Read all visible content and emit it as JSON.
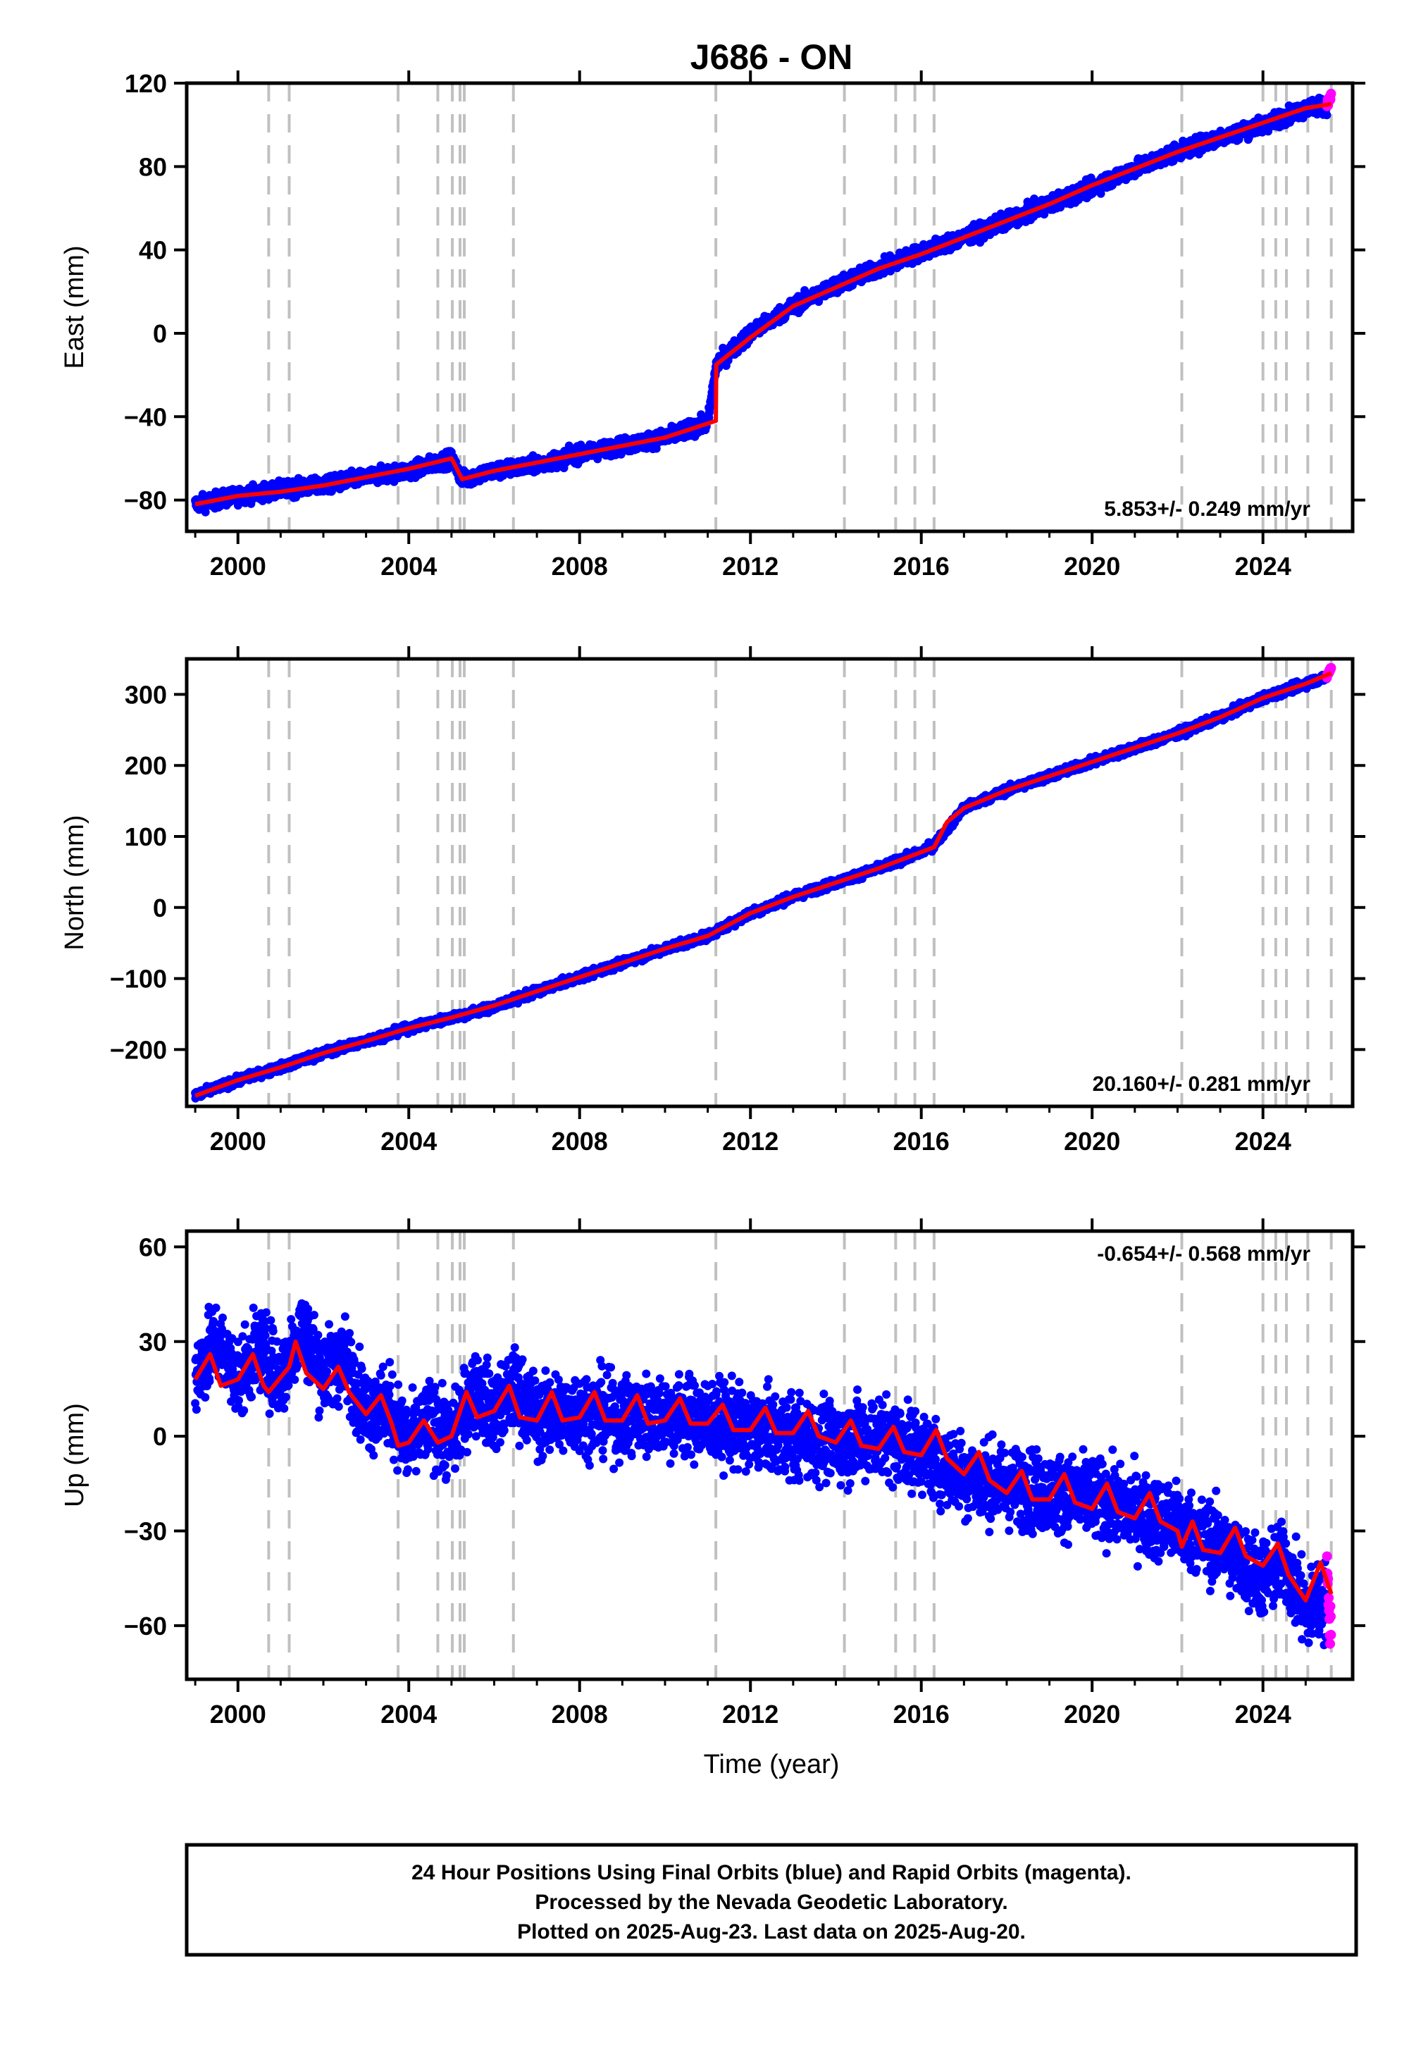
{
  "chart_data": [
    {
      "type": "scatter",
      "panel": "east",
      "title": "J686 - ON",
      "xlabel": "",
      "ylabel": "East (mm)",
      "xlim": [
        1998.8,
        2026.1
      ],
      "ylim": [
        -95,
        120
      ],
      "yticks": [
        -80,
        -40,
        0,
        40,
        80,
        120
      ],
      "xticks": [
        2000,
        2004,
        2008,
        2012,
        2016,
        2020,
        2024
      ],
      "grid": false,
      "rate_label": "5.853+/- 0.249 mm/yr",
      "offset_epochs": [
        2000.72,
        2001.2,
        2003.75,
        2004.68,
        2005.02,
        2005.2,
        2005.3,
        2006.45,
        2011.19,
        2014.2,
        2015.4,
        2015.85,
        2016.3,
        2022.1,
        2024.0,
        2024.3,
        2024.55,
        2025.05,
        2025.6
      ],
      "series": [
        {
          "name": "Final Orbits (blue)",
          "color": "#0000ff",
          "x": [
            1999.0,
            2000.0,
            2001.0,
            2002.0,
            2003.0,
            2004.0,
            2005.0,
            2005.25,
            2006.0,
            2007.0,
            2008.0,
            2009.0,
            2010.0,
            2011.0,
            2011.2,
            2012.0,
            2013.0,
            2014.0,
            2015.0,
            2016.0,
            2017.0,
            2018.0,
            2019.0,
            2020.0,
            2021.0,
            2022.0,
            2023.0,
            2024.0,
            2025.0,
            2025.5
          ],
          "y": [
            -82,
            -78,
            -75,
            -73,
            -69,
            -66,
            -60,
            -70,
            -66,
            -63,
            -58,
            -54,
            -50,
            -43,
            -15,
            0,
            13,
            23,
            31,
            39,
            46,
            54,
            62,
            70,
            79,
            87,
            94,
            100,
            108,
            109
          ]
        },
        {
          "name": "Rapid Orbits (magenta)",
          "color": "#ff00ff",
          "x": [
            2025.5,
            2025.55,
            2025.6
          ],
          "y": [
            109,
            112,
            114
          ]
        },
        {
          "name": "model",
          "color": "#ff0000",
          "x": [
            1999.0,
            2000.0,
            2001.0,
            2002.0,
            2003.0,
            2004.0,
            2005.0,
            2005.25,
            2006.0,
            2007.0,
            2008.0,
            2009.0,
            2010.0,
            2011.19,
            2011.2,
            2012.0,
            2013.0,
            2014.0,
            2015.0,
            2016.0,
            2017.0,
            2018.0,
            2019.0,
            2020.0,
            2021.0,
            2022.0,
            2023.0,
            2024.0,
            2025.0,
            2025.6
          ],
          "y": [
            -82,
            -78,
            -76,
            -73,
            -69,
            -65,
            -60,
            -70,
            -66,
            -62,
            -58,
            -54,
            -50,
            -42,
            -15,
            -2,
            13,
            22,
            31,
            38,
            46,
            54,
            62,
            71,
            79,
            87,
            94,
            101,
            108,
            110
          ]
        }
      ]
    },
    {
      "type": "scatter",
      "panel": "north",
      "title": "",
      "xlabel": "",
      "ylabel": "North (mm)",
      "xlim": [
        1998.8,
        2026.1
      ],
      "ylim": [
        -280,
        350
      ],
      "yticks": [
        -200,
        -100,
        0,
        100,
        200,
        300
      ],
      "xticks": [
        2000,
        2004,
        2008,
        2012,
        2016,
        2020,
        2024
      ],
      "grid": false,
      "rate_label": "20.160+/- 0.281 mm/yr",
      "offset_epochs": [
        2000.72,
        2001.2,
        2003.75,
        2004.68,
        2005.02,
        2005.2,
        2005.3,
        2006.45,
        2011.19,
        2014.2,
        2015.4,
        2015.85,
        2016.3,
        2022.1,
        2024.0,
        2024.3,
        2024.55,
        2025.05,
        2025.6
      ],
      "series": [
        {
          "name": "Final Orbits (blue)",
          "color": "#0000ff",
          "x": [
            1999.0,
            2000.0,
            2001.0,
            2002.0,
            2003.0,
            2004.0,
            2005.0,
            2006.0,
            2007.0,
            2008.0,
            2009.0,
            2010.0,
            2011.0,
            2012.0,
            2013.0,
            2014.0,
            2015.0,
            2016.0,
            2016.3,
            2017.0,
            2018.0,
            2019.0,
            2020.0,
            2021.0,
            2022.0,
            2023.0,
            2024.0,
            2025.0,
            2025.5
          ],
          "y": [
            -265,
            -243,
            -225,
            -205,
            -188,
            -170,
            -155,
            -140,
            -118,
            -98,
            -78,
            -58,
            -40,
            -8,
            15,
            35,
            55,
            78,
            88,
            140,
            165,
            185,
            205,
            225,
            245,
            268,
            295,
            315,
            325
          ]
        },
        {
          "name": "Rapid Orbits (magenta)",
          "color": "#ff00ff",
          "x": [
            2025.5,
            2025.55,
            2025.6
          ],
          "y": [
            325,
            332,
            338
          ]
        },
        {
          "name": "model",
          "color": "#ff0000",
          "x": [
            1999.0,
            2000.0,
            2001.0,
            2002.0,
            2003.0,
            2004.0,
            2005.0,
            2006.0,
            2007.0,
            2008.0,
            2009.0,
            2010.0,
            2011.0,
            2012.0,
            2013.0,
            2014.0,
            2015.0,
            2016.0,
            2016.3,
            2016.6,
            2017.0,
            2018.0,
            2019.0,
            2020.0,
            2021.0,
            2022.0,
            2023.0,
            2024.0,
            2025.0,
            2025.6
          ],
          "y": [
            -265,
            -243,
            -225,
            -205,
            -188,
            -170,
            -155,
            -138,
            -118,
            -98,
            -78,
            -58,
            -40,
            -8,
            15,
            35,
            55,
            78,
            85,
            120,
            140,
            165,
            185,
            205,
            225,
            245,
            268,
            295,
            315,
            330
          ]
        }
      ]
    },
    {
      "type": "scatter",
      "panel": "up",
      "title": "",
      "xlabel": "Time (year)",
      "ylabel": "Up (mm)",
      "xlim": [
        1998.8,
        2026.1
      ],
      "ylim": [
        -77,
        65
      ],
      "yticks": [
        -60,
        -30,
        0,
        30,
        60
      ],
      "xticks": [
        2000,
        2004,
        2008,
        2012,
        2016,
        2020,
        2024
      ],
      "grid": false,
      "rate_label": "-0.654+/- 0.568 mm/yr",
      "offset_epochs": [
        2000.72,
        2001.2,
        2003.75,
        2004.68,
        2005.02,
        2005.2,
        2005.3,
        2006.45,
        2011.19,
        2014.2,
        2015.4,
        2015.85,
        2016.3,
        2022.1,
        2024.0,
        2024.3,
        2024.55,
        2025.05,
        2025.6
      ],
      "series": [
        {
          "name": "Final Orbits (blue)",
          "color": "#0000ff",
          "x": [
            1999.0,
            1999.5,
            2000.0,
            2000.5,
            2001.0,
            2001.5,
            2002.0,
            2002.5,
            2003.0,
            2003.5,
            2004.0,
            2004.5,
            2005.0,
            2005.5,
            2006.0,
            2006.5,
            2007.0,
            2008.0,
            2009.0,
            2010.0,
            2011.0,
            2012.0,
            2013.0,
            2014.0,
            2015.0,
            2016.0,
            2017.0,
            2018.0,
            2019.0,
            2020.0,
            2021.0,
            2022.0,
            2023.0,
            2024.0,
            2024.5,
            2025.0,
            2025.5
          ],
          "y": [
            20,
            30,
            18,
            28,
            18,
            35,
            20,
            25,
            8,
            10,
            -3,
            5,
            -2,
            15,
            8,
            15,
            6,
            8,
            6,
            7,
            5,
            2,
            0,
            -2,
            0,
            -5,
            -12,
            -16,
            -18,
            -20,
            -24,
            -28,
            -35,
            -45,
            -40,
            -55,
            -52
          ]
        },
        {
          "name": "Rapid Orbits (magenta)",
          "color": "#ff00ff",
          "x": [
            2025.5,
            2025.55,
            2025.6
          ],
          "y": [
            -45,
            -55,
            -62
          ]
        },
        {
          "name": "model",
          "color": "#ff0000",
          "x": [
            1999.0,
            1999.35,
            1999.6,
            2000.0,
            2000.35,
            2000.6,
            2000.72,
            2001.2,
            2001.35,
            2001.6,
            2002.0,
            2002.35,
            2002.6,
            2003.0,
            2003.35,
            2003.6,
            2003.75,
            2004.0,
            2004.35,
            2004.68,
            2005.0,
            2005.35,
            2005.6,
            2006.0,
            2006.35,
            2006.6,
            2007.0,
            2007.35,
            2007.6,
            2008.0,
            2008.35,
            2008.6,
            2009.0,
            2009.35,
            2009.6,
            2010.0,
            2010.35,
            2010.6,
            2011.0,
            2011.35,
            2011.6,
            2012.0,
            2012.35,
            2012.6,
            2013.0,
            2013.35,
            2013.6,
            2014.0,
            2014.35,
            2014.6,
            2015.0,
            2015.35,
            2015.6,
            2016.0,
            2016.35,
            2016.6,
            2017.0,
            2017.35,
            2017.6,
            2018.0,
            2018.35,
            2018.6,
            2019.0,
            2019.35,
            2019.6,
            2020.0,
            2020.35,
            2020.6,
            2021.0,
            2021.35,
            2021.6,
            2022.0,
            2022.1,
            2022.35,
            2022.6,
            2023.0,
            2023.35,
            2023.6,
            2024.0,
            2024.35,
            2024.6,
            2025.0,
            2025.35,
            2025.6
          ],
          "y": [
            18,
            26,
            16,
            18,
            26,
            16,
            14,
            22,
            30,
            20,
            15,
            22,
            14,
            7,
            13,
            4,
            -3,
            -2,
            5,
            -2,
            0,
            14,
            6,
            8,
            16,
            6,
            5,
            14,
            5,
            6,
            14,
            5,
            5,
            13,
            4,
            5,
            12,
            4,
            4,
            10,
            2,
            2,
            9,
            1,
            1,
            8,
            0,
            -2,
            5,
            -3,
            -4,
            3,
            -5,
            -6,
            2,
            -7,
            -12,
            -5,
            -14,
            -18,
            -11,
            -20,
            -20,
            -12,
            -21,
            -23,
            -15,
            -24,
            -26,
            -18,
            -27,
            -30,
            -35,
            -27,
            -36,
            -37,
            -29,
            -38,
            -41,
            -34,
            -44,
            -52,
            -40,
            -50
          ]
        }
      ]
    }
  ],
  "footer": {
    "line1": "24 Hour Positions Using Final Orbits (blue) and Rapid Orbits (magenta).",
    "line2": "Processed by the Nevada Geodetic Laboratory.",
    "line3": "Plotted on 2025-Aug-23. Last data on 2025-Aug-20."
  }
}
